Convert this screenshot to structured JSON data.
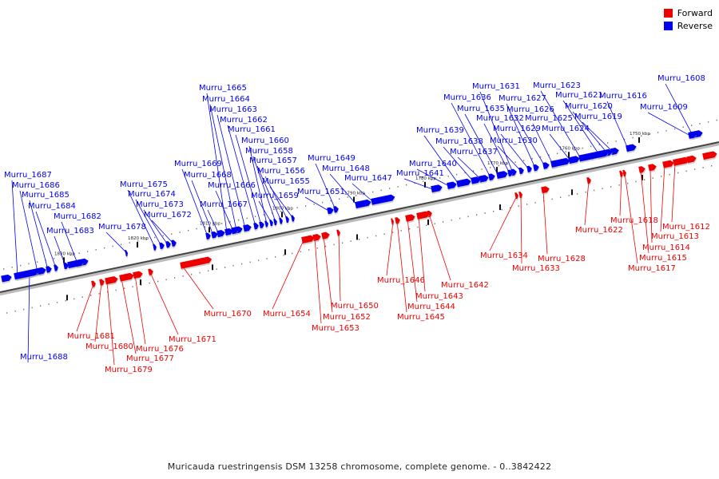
{
  "caption": "Muricauda ruestringensis DSM 13258 chromosome, complete genome. - 0..3842422",
  "legend": {
    "forward_label": "Forward",
    "reverse_label": "Reverse",
    "forward_color": "#ee0000",
    "reverse_color": "#0000ee"
  },
  "ticks": [
    "1750 kbp",
    "1760 kbp",
    "1770 kbp",
    "1780 kbp",
    "1790 kbp",
    "1800 kbp",
    "1810 kbp",
    "1820 kbp",
    "1830 kbp"
  ],
  "reverse_genes": [
    "Murru_1608",
    "Murru_1609",
    "Murru_1616",
    "Murru_1619",
    "Murru_1620",
    "Murru_1621",
    "Murru_1623",
    "Murru_1624",
    "Murru_1625",
    "Murru_1626",
    "Murru_1627",
    "Murru_1629",
    "Murru_1630",
    "Murru_1631",
    "Murru_1632",
    "Murru_1635",
    "Murru_1636",
    "Murru_1637",
    "Murru_1638",
    "Murru_1639",
    "Murru_1640",
    "Murru_1641",
    "Murru_1647",
    "Murru_1648",
    "Murru_1649",
    "Murru_1651",
    "Murru_1655",
    "Murru_1656",
    "Murru_1657",
    "Murru_1658",
    "Murru_1659",
    "Murru_1660",
    "Murru_1661",
    "Murru_1662",
    "Murru_1663",
    "Murru_1664",
    "Murru_1665",
    "Murru_1666",
    "Murru_1667",
    "Murru_1668",
    "Murru_1669",
    "Murru_1672",
    "Murru_1673",
    "Murru_1674",
    "Murru_1675",
    "Murru_1678",
    "Murru_1682",
    "Murru_1683",
    "Murru_1684",
    "Murru_1685",
    "Murru_1686",
    "Murru_1687",
    "Murru_1688"
  ],
  "forward_genes": [
    "Murru_1612",
    "Murru_1613",
    "Murru_1614",
    "Murru_1615",
    "Murru_1617",
    "Murru_1618",
    "Murru_1622",
    "Murru_1628",
    "Murru_1633",
    "Murru_1634",
    "Murru_1642",
    "Murru_1643",
    "Murru_1644",
    "Murru_1645",
    "Murru_1646",
    "Murru_1650",
    "Murru_1652",
    "Murru_1653",
    "Murru_1654",
    "Murru_1670",
    "Murru_1671",
    "Murru_1676",
    "Murru_1677",
    "Murru_1679",
    "Murru_1680",
    "Murru_1681"
  ]
}
